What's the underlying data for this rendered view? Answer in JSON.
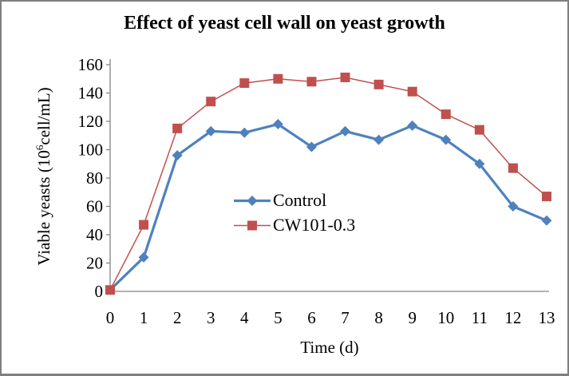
{
  "chart_data": {
    "type": "line",
    "title": "Effect of yeast cell wall on yeast growth",
    "xlabel": "Time (d)",
    "ylabel": {
      "prefix": "Viable yeasts (10",
      "sup": "6",
      "suffix": "cell/mL)"
    },
    "x": [
      0,
      1,
      2,
      3,
      4,
      5,
      6,
      7,
      8,
      9,
      10,
      11,
      12,
      13
    ],
    "series": [
      {
        "name": "Control",
        "marker": "diamond",
        "color": "#4F81BD",
        "line_width": 3.2,
        "values": [
          1,
          24,
          96,
          113,
          112,
          118,
          102,
          113,
          107,
          117,
          107,
          90,
          60,
          50
        ]
      },
      {
        "name": "CW101-0.3",
        "marker": "square",
        "color": "#C0504D",
        "line_width": 1.5,
        "values": [
          1,
          47,
          115,
          134,
          147,
          150,
          148,
          151,
          146,
          141,
          125,
          114,
          87,
          67
        ]
      }
    ],
    "ylim": [
      0,
      160
    ],
    "y_ticks": [
      0,
      20,
      40,
      60,
      80,
      100,
      120,
      140,
      160
    ],
    "grid": false,
    "legend_position": "inside-center",
    "axis_color": "#848484"
  }
}
